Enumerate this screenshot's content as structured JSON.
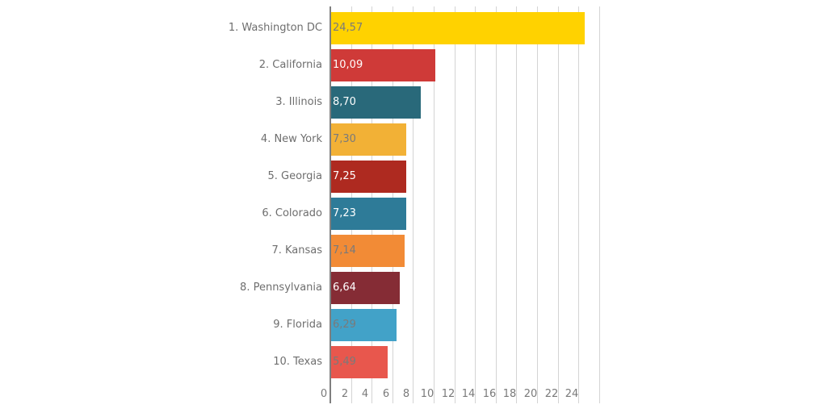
{
  "chart_data": {
    "type": "bar",
    "orientation": "horizontal",
    "title": "",
    "xlabel": "",
    "ylabel": "",
    "xlim": [
      0,
      26
    ],
    "grid": true,
    "categories": [
      "1. Washington DC",
      "2. California",
      "3. Illinois",
      "4. New York",
      "5. Georgia",
      "6. Colorado",
      "7. Kansas",
      "8. Pennsylvania",
      "9. Florida",
      "10. Texas"
    ],
    "values": [
      24.57,
      10.09,
      8.7,
      7.3,
      7.25,
      7.23,
      7.14,
      6.64,
      6.29,
      5.49
    ],
    "value_labels": [
      "24,57",
      "10,09",
      "8,70",
      "7,30",
      "7,25",
      "7,23",
      "7,14",
      "6,64",
      "6,29",
      "5,49"
    ],
    "colors": [
      "#ffd200",
      "#cf3a38",
      "#29697a",
      "#f2b136",
      "#ae2a20",
      "#2e7b98",
      "#f28b36",
      "#852c35",
      "#42a2c8",
      "#e8574d"
    ],
    "label_colors": [
      "#7a7a7a",
      "#ffffff",
      "#ffffff",
      "#7a7a7a",
      "#ffffff",
      "#ffffff",
      "#7a7a7a",
      "#ffffff",
      "#7a7a7a",
      "#7a7a7a"
    ],
    "x_ticks": [
      "0",
      "2",
      "4",
      "6",
      "8",
      "10",
      "12",
      "14",
      "16",
      "18",
      "20",
      "22",
      "24"
    ]
  }
}
